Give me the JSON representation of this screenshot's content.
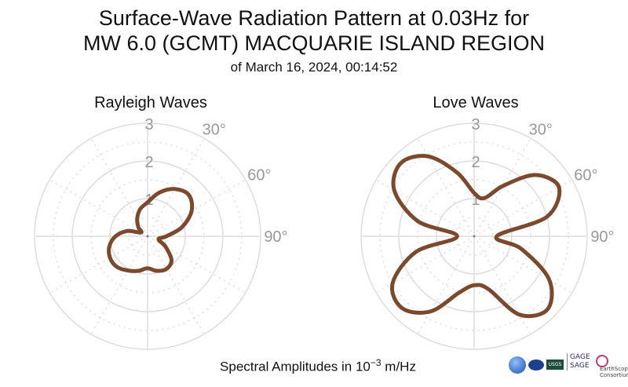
{
  "title_line1": "Surface-Wave Radiation Pattern at 0.03Hz for",
  "title_line2": "MW 6.0 (GCMT) MACQUARIE ISLAND REGION",
  "subtitle": "of March 16, 2024, 00:14:52",
  "footer": {
    "prefix": "Spectral Amplitudes in ",
    "base": "10",
    "exponent": "−3",
    "unit": " m/Hz"
  },
  "logos": {
    "gage_line1": "GAGE",
    "gage_line2": "SAGE",
    "earthscope": "EarthScope",
    "consortium": "Consortium",
    "usgs": "USGS"
  },
  "colors": {
    "pattern": "#7b4a2e",
    "grid": "#dddddd",
    "tick_text": "#999999"
  },
  "chart_data": [
    {
      "type": "polar-line",
      "title": "Rayleigh Waves",
      "radial_ticks": [
        "1",
        "2",
        "3"
      ],
      "radial_range": [
        0,
        3
      ],
      "angle_ticks": [
        "30°",
        "60°",
        "90°"
      ],
      "theta_deg": [
        0,
        15,
        30,
        45,
        60,
        75,
        90,
        105,
        120,
        135,
        150,
        165,
        180,
        195,
        210,
        225,
        240,
        255,
        270,
        285,
        300,
        315,
        330,
        345
      ],
      "amplitude": [
        0.9,
        1.2,
        1.45,
        1.55,
        1.35,
        0.95,
        0.5,
        0.3,
        0.55,
        0.9,
        1.0,
        0.95,
        0.85,
        0.95,
        1.05,
        1.15,
        1.15,
        1.05,
        0.85,
        0.55,
        0.2,
        0.35,
        0.55,
        0.75
      ]
    },
    {
      "type": "polar-line",
      "title": "Love Waves",
      "radial_ticks": [
        "1",
        "2",
        "3"
      ],
      "radial_range": [
        0,
        3
      ],
      "angle_ticks": [
        "30°",
        "60°",
        "90°"
      ],
      "theta_deg": [
        0,
        15,
        30,
        45,
        60,
        75,
        90,
        105,
        120,
        135,
        150,
        165,
        180,
        195,
        210,
        225,
        240,
        255,
        270,
        285,
        300,
        315,
        330,
        345
      ],
      "amplitude": [
        1.15,
        1.05,
        1.55,
        2.3,
        2.6,
        2.0,
        0.6,
        1.3,
        2.3,
        2.75,
        2.4,
        1.45,
        1.3,
        1.55,
        2.3,
        2.7,
        2.5,
        1.6,
        0.45,
        1.55,
        2.45,
        2.75,
        2.45,
        1.75
      ]
    }
  ]
}
